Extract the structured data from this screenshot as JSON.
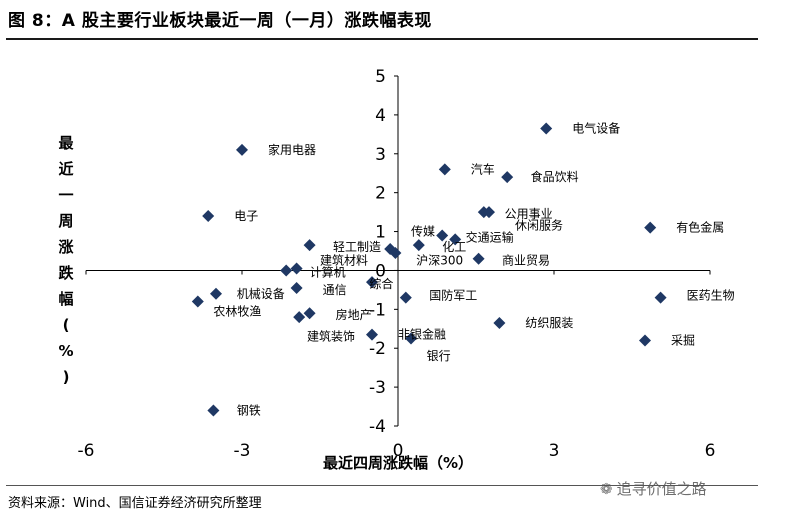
{
  "page": {
    "title": "图 8：A 股主要行业板块最近一周（一月）涨跌幅表现",
    "source": "资料来源：Wind、国信证券经济研究所整理",
    "watermark": "追寻价值之路"
  },
  "chart_data": {
    "type": "scatter",
    "title": "",
    "xlabel": "最近四周涨跌幅（%）",
    "ylabel": "最近一周涨跌幅（%）",
    "xlim": [
      -6,
      6
    ],
    "ylim": [
      -4,
      5
    ],
    "xticks": [
      -6,
      -3,
      0,
      3,
      6
    ],
    "yticks": [
      -4,
      -3,
      -2,
      -1,
      0,
      1,
      2,
      3,
      4,
      5
    ],
    "marker_color": "#1F3864",
    "grid": false,
    "points": [
      {
        "label": "电气设备",
        "x": 2.85,
        "y": 3.65
      },
      {
        "label": "家用电器",
        "x": -3.0,
        "y": 3.1
      },
      {
        "label": "汽车",
        "x": 0.9,
        "y": 2.6
      },
      {
        "label": "食品饮料",
        "x": 2.1,
        "y": 2.4
      },
      {
        "label": "电子",
        "x": -3.65,
        "y": 1.4
      },
      {
        "label": "公用事业",
        "x": 1.65,
        "y": 1.5
      },
      {
        "label": "休闲服务",
        "x": 1.75,
        "y": 1.5
      },
      {
        "label": "有色金属",
        "x": 4.85,
        "y": 1.1
      },
      {
        "label": "传媒",
        "x": 0.85,
        "y": 0.9
      },
      {
        "label": "交通运输",
        "x": 1.1,
        "y": 0.8
      },
      {
        "label": "轻工制造",
        "x": -1.7,
        "y": 0.65
      },
      {
        "label": "化工",
        "x": 0.4,
        "y": 0.65
      },
      {
        "label": "建筑材料",
        "x": -0.15,
        "y": 0.55
      },
      {
        "label": "沪深300",
        "x": -0.05,
        "y": 0.45
      },
      {
        "label": "商业贸易",
        "x": 1.55,
        "y": 0.3
      },
      {
        "label": "计算机",
        "x": -2.15,
        "y": 0.0
      },
      {
        "label": "计算机",
        "x": -1.95,
        "y": 0.05
      },
      {
        "label": "综合",
        "x": -0.5,
        "y": -0.3
      },
      {
        "label": "机械设备",
        "x": -3.5,
        "y": -0.6
      },
      {
        "label": "通信",
        "x": -1.95,
        "y": -0.45
      },
      {
        "label": "农林牧渔",
        "x": -3.85,
        "y": -0.8
      },
      {
        "label": "国防军工",
        "x": 0.15,
        "y": -0.7
      },
      {
        "label": "医药生物",
        "x": 5.05,
        "y": -0.7
      },
      {
        "label": "房地产",
        "x": -1.7,
        "y": -1.1
      },
      {
        "label": "房地产",
        "x": -1.9,
        "y": -1.2
      },
      {
        "label": "纺织服装",
        "x": 1.95,
        "y": -1.35
      },
      {
        "label": "建筑装饰",
        "x": -0.5,
        "y": -1.65
      },
      {
        "label": "非银金融",
        "x": 0.25,
        "y": -1.75
      },
      {
        "label": "采掘",
        "x": 4.75,
        "y": -1.8
      },
      {
        "label": "钢铁",
        "x": -3.55,
        "y": -3.6
      }
    ],
    "labels": [
      {
        "text": "电气设备",
        "x": 3.35,
        "y": 3.65
      },
      {
        "text": "家用电器",
        "x": -2.5,
        "y": 3.1
      },
      {
        "text": "汽车",
        "x": 1.4,
        "y": 2.6
      },
      {
        "text": "食品饮料",
        "x": 2.55,
        "y": 2.4
      },
      {
        "text": "电子",
        "x": -3.15,
        "y": 1.4
      },
      {
        "text": "公用事业",
        "x": 2.05,
        "y": 1.45
      },
      {
        "text": "休闲服务",
        "x": 2.25,
        "y": 1.15
      },
      {
        "text": "有色金属",
        "x": 5.35,
        "y": 1.1
      },
      {
        "text": "传媒",
        "x": 0.25,
        "y": 1.0
      },
      {
        "text": "交通运输",
        "x": 1.3,
        "y": 0.85
      },
      {
        "text": "轻工制造",
        "x": -1.25,
        "y": 0.6
      },
      {
        "text": "化工",
        "x": 0.85,
        "y": 0.6
      },
      {
        "text": "建筑材料",
        "x": -1.5,
        "y": 0.25
      },
      {
        "text": "沪深300",
        "x": 0.35,
        "y": 0.25
      },
      {
        "text": "商业贸易",
        "x": 2.0,
        "y": 0.25
      },
      {
        "text": "计算机",
        "x": -1.7,
        "y": -0.05
      },
      {
        "text": "综合",
        "x": -0.55,
        "y": -0.35
      },
      {
        "text": "机械设备",
        "x": -3.1,
        "y": -0.6
      },
      {
        "text": "通信",
        "x": -1.45,
        "y": -0.5
      },
      {
        "text": "农林牧渔",
        "x": -3.55,
        "y": -1.05
      },
      {
        "text": "国防军工",
        "x": 0.6,
        "y": -0.65
      },
      {
        "text": "医药生物",
        "x": 5.55,
        "y": -0.65
      },
      {
        "text": "房地产",
        "x": -1.2,
        "y": -1.15
      },
      {
        "text": "纺织服装",
        "x": 2.45,
        "y": -1.35
      },
      {
        "text": "建筑装饰",
        "x": -1.75,
        "y": -1.7
      },
      {
        "text": "非银金融",
        "x": 0.0,
        "y": -1.65
      },
      {
        "text": "银行",
        "x": 0.55,
        "y": -2.2
      },
      {
        "text": "采掘",
        "x": 5.25,
        "y": -1.8
      },
      {
        "text": "钢铁",
        "x": -3.1,
        "y": -3.6
      }
    ]
  }
}
